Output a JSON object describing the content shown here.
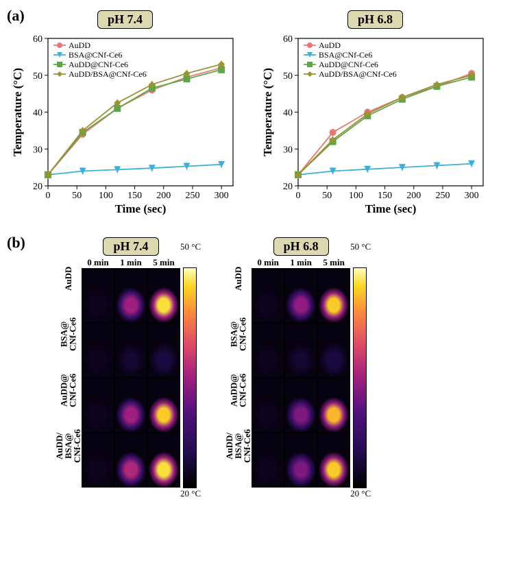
{
  "panelA_label": "(a)",
  "panelB_label": "(b)",
  "ph74_label": "pH 7.4",
  "ph68_label": "pH 6.8",
  "xlabel": "Time (sec)",
  "ylabel": "Temperature (°C)",
  "xlim": [
    0,
    320
  ],
  "ylim": [
    20,
    60
  ],
  "xticks": [
    0,
    50,
    100,
    150,
    200,
    250,
    300
  ],
  "yticks": [
    20,
    30,
    40,
    50,
    60
  ],
  "xtick_fontsize": 14,
  "ytick_fontsize": 14,
  "axis_label_fontsize": 17,
  "axis_label_weight": "bold",
  "series": [
    {
      "name": "AuDD",
      "color": "#e97774",
      "marker": "circle"
    },
    {
      "name": "BSA@CNf-Ce6",
      "color": "#3eb0d8",
      "marker": "triangle-down"
    },
    {
      "name": "AuDD@CNf-Ce6",
      "color": "#5fa549",
      "marker": "square"
    },
    {
      "name": "AuDD/BSA@CNf-Ce6",
      "color": "#9a9331",
      "marker": "diamond"
    }
  ],
  "legend_fontsize": 12,
  "legend_pos": "upper-left-inside",
  "chart_ph74": {
    "x": [
      0,
      60,
      120,
      180,
      240,
      300
    ],
    "AuDD": [
      23,
      34.0,
      41.0,
      46.0,
      49.5,
      52.0
    ],
    "BSA@CNf-Ce6": [
      23,
      24.0,
      24.4,
      24.8,
      25.3,
      25.8
    ],
    "AuDD@CNf-Ce6": [
      23,
      34.5,
      41.0,
      46.5,
      49.0,
      51.5
    ],
    "AuDD/BSA@CNf-Ce6": [
      23,
      35.0,
      42.5,
      47.5,
      50.5,
      53.0
    ]
  },
  "chart_ph68": {
    "x": [
      0,
      60,
      120,
      180,
      240,
      300
    ],
    "AuDD": [
      23,
      34.5,
      40.0,
      44.0,
      47.0,
      50.5
    ],
    "BSA@CNf-Ce6": [
      23,
      24.0,
      24.5,
      25.0,
      25.5,
      26.0
    ],
    "AuDD@CNf-Ce6": [
      23,
      32.0,
      39.0,
      43.5,
      47.0,
      49.5
    ],
    "AuDD/BSA@CNf-Ce6": [
      23,
      32.5,
      39.5,
      44.0,
      47.5,
      50.0
    ]
  },
  "err": 1.0,
  "chart_bg": "#ffffff",
  "axis_color": "#000000",
  "line_width": 1.8,
  "marker_size": 5,
  "time_cols": [
    "0 min",
    "1 min",
    "5 min"
  ],
  "row_labels": [
    "AuDD",
    "BSA@\nCNf-Ce6",
    "AuDD@\nCNf-Ce6",
    "AuDD/\nBSA@\nCNf-Ce6"
  ],
  "colorbar": {
    "min": 20,
    "max": 50,
    "unit": "°C",
    "stops": [
      {
        "t": 0.0,
        "c": "#000000"
      },
      {
        "t": 0.15,
        "c": "#1e0b4a"
      },
      {
        "t": 0.35,
        "c": "#54127f"
      },
      {
        "t": 0.5,
        "c": "#a01f7e"
      },
      {
        "t": 0.65,
        "c": "#de4968"
      },
      {
        "t": 0.8,
        "c": "#fb8b3c"
      },
      {
        "t": 0.92,
        "c": "#fad824"
      },
      {
        "t": 1.0,
        "c": "#fcfdbf"
      }
    ]
  },
  "heat_ph74": [
    [
      22,
      35,
      48
    ],
    [
      22,
      23,
      24
    ],
    [
      22,
      35,
      47
    ],
    [
      22,
      36,
      48
    ]
  ],
  "heat_ph68": [
    [
      22,
      34,
      47
    ],
    [
      22,
      23,
      24
    ],
    [
      22,
      33,
      46
    ],
    [
      22,
      33,
      47
    ]
  ],
  "cell_bg_temp": 21
}
